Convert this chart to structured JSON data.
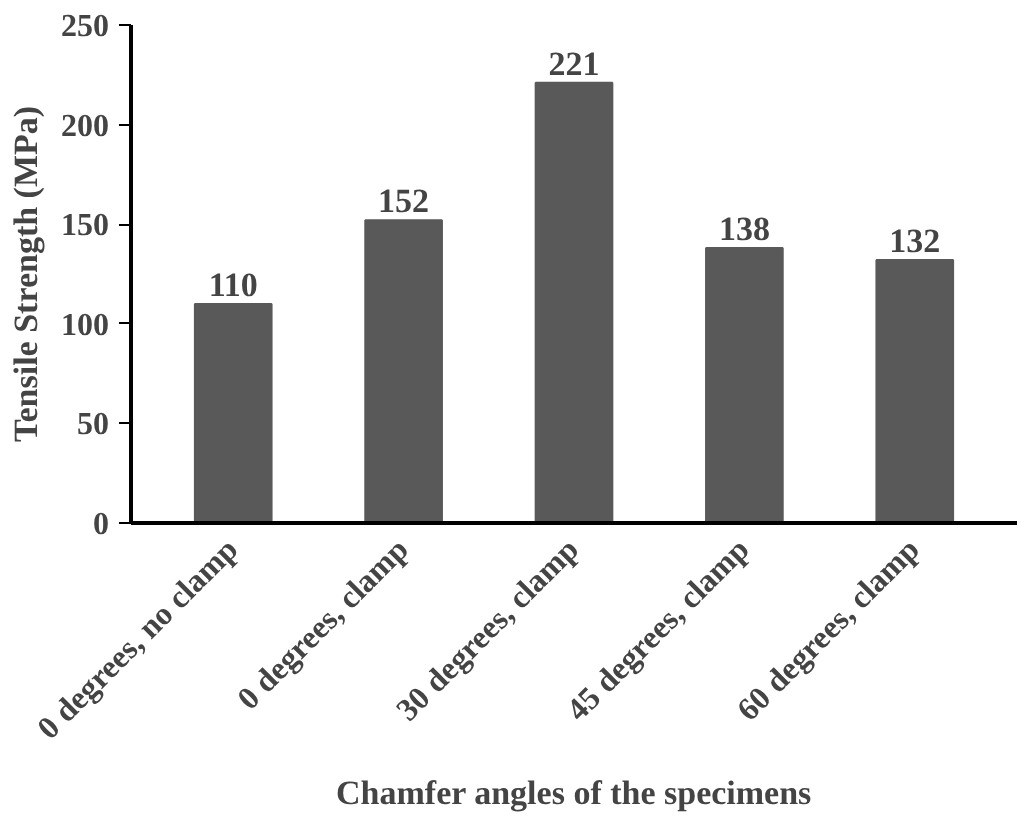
{
  "chart_data": {
    "type": "bar",
    "xlabel": "Chamfer angles of the specimens",
    "ylabel": "Tensile Strength (MPa)",
    "categories": [
      "0 degrees, no clamp",
      "0 degrees, clamp",
      "30 degrees, clamp",
      "45 degrees, clamp",
      "60 degrees, clamp"
    ],
    "values": [
      110,
      152,
      221,
      138,
      132
    ],
    "color": "#595959",
    "ylim": [
      0,
      250
    ],
    "yticks": [
      0,
      50,
      100,
      150,
      200,
      250
    ],
    "data_labels": true,
    "grid": false
  }
}
